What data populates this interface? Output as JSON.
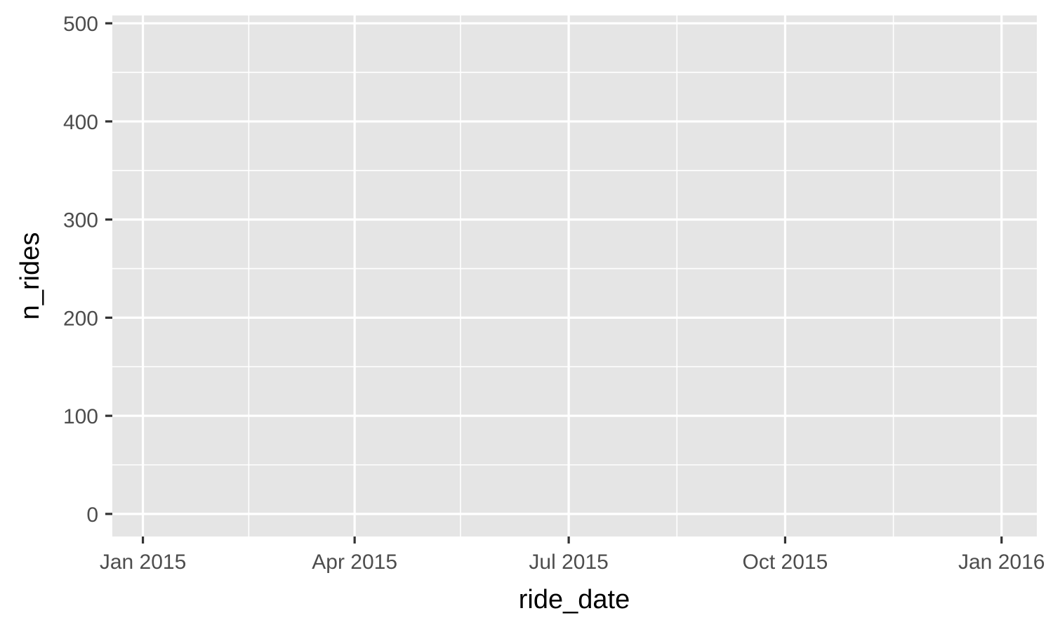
{
  "chart_data": {
    "type": "line",
    "title": "",
    "xlabel": "ride_date",
    "ylabel": "n_rides",
    "x_type": "date",
    "xlim": [
      "2014-12-19",
      "2016-01-16"
    ],
    "ylim": [
      -23,
      508
    ],
    "x_ticks": [
      {
        "value": "2015-01-01",
        "label": "Jan 2015"
      },
      {
        "value": "2015-04-01",
        "label": "Apr 2015"
      },
      {
        "value": "2015-07-01",
        "label": "Jul 2015"
      },
      {
        "value": "2015-10-01",
        "label": "Oct 2015"
      },
      {
        "value": "2016-01-01",
        "label": "Jan 2016"
      }
    ],
    "x_minor_ticks": [
      "2015-02-15",
      "2015-05-16",
      "2015-08-16",
      "2015-11-16"
    ],
    "y_ticks": [
      0,
      100,
      200,
      300,
      400,
      500
    ],
    "y_minor_ticks": [
      50,
      150,
      250,
      350,
      450
    ],
    "series": [],
    "grid": true,
    "legend": "none",
    "colors": {
      "panel_background": "#e5e5e5",
      "grid_line": "#ffffff",
      "tick_mark": "#333333",
      "tick_label": "#4d4d4d",
      "axis_title": "#000000"
    }
  }
}
